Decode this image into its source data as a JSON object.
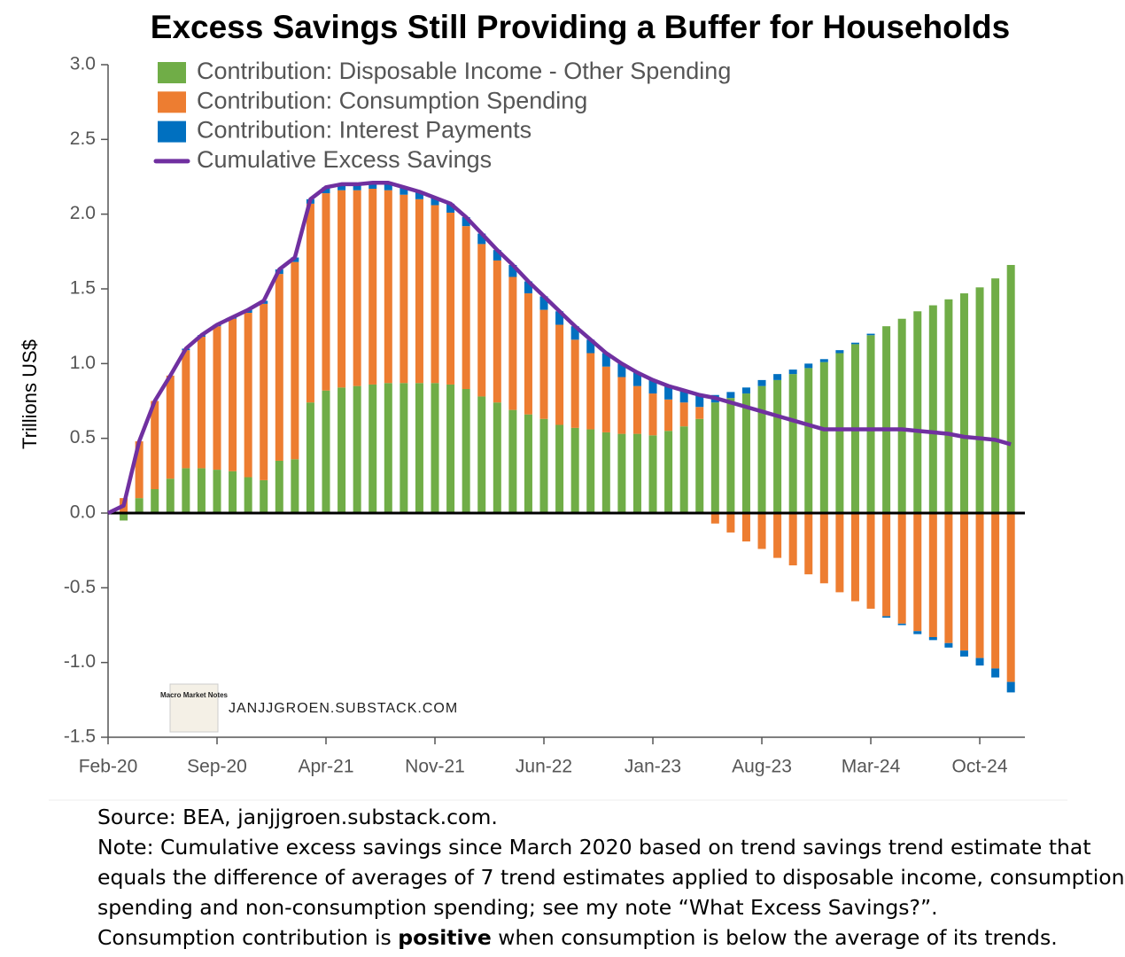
{
  "chart_data": {
    "type": "stacked_bar_line",
    "title": "Excess Savings Still Providing a Buffer for Households",
    "y_label": "Trillions US$",
    "watermark": "JANJJGROEN.SUBSTACK.COM",
    "logo_text": "Macro Market Notes",
    "legend": "upper left",
    "categories": [
      "Feb-20",
      null,
      null,
      null,
      null,
      null,
      null,
      "Sep-20",
      null,
      null,
      null,
      null,
      null,
      null,
      "Apr-21",
      null,
      null,
      null,
      null,
      null,
      null,
      "Nov-21",
      null,
      null,
      null,
      null,
      null,
      null,
      "Jun-22",
      null,
      null,
      null,
      null,
      null,
      null,
      "Jan-23",
      null,
      null,
      null,
      null,
      null,
      null,
      "Aug-23",
      null,
      null,
      null,
      null,
      null,
      null,
      "Mar-24",
      null,
      null,
      null,
      null,
      null,
      null,
      "Oct-24",
      null,
      null
    ],
    "series": [
      {
        "name": "Contribution: Disposable Income - Other Spending",
        "color": "#70ad47",
        "kind": "bar",
        "values": [
          null,
          -0.05,
          0.1,
          0.16,
          0.23,
          0.3,
          0.3,
          0.29,
          0.28,
          0.24,
          0.22,
          0.35,
          0.36,
          0.74,
          0.82,
          0.84,
          0.85,
          0.86,
          0.87,
          0.87,
          0.87,
          0.87,
          0.86,
          0.83,
          0.78,
          0.74,
          0.69,
          0.66,
          0.63,
          0.59,
          0.57,
          0.56,
          0.54,
          0.53,
          0.53,
          0.52,
          0.55,
          0.58,
          0.63,
          0.74,
          0.77,
          0.8,
          0.85,
          0.89,
          0.93,
          0.97,
          1.01,
          1.07,
          1.13,
          1.19,
          1.25,
          1.3,
          1.35,
          1.39,
          1.43,
          1.47,
          1.51,
          1.57,
          1.66
        ]
      },
      {
        "name": "Contribution: Consumption Spending",
        "color": "#ed7d31",
        "kind": "bar",
        "values": [
          null,
          0.1,
          0.38,
          0.59,
          0.69,
          0.79,
          0.88,
          0.96,
          1.02,
          1.1,
          1.18,
          1.25,
          1.32,
          1.33,
          1.32,
          1.32,
          1.31,
          1.31,
          1.29,
          1.26,
          1.23,
          1.19,
          1.15,
          1.09,
          1.02,
          0.95,
          0.89,
          0.81,
          0.73,
          0.67,
          0.59,
          0.51,
          0.44,
          0.38,
          0.32,
          0.28,
          0.21,
          0.16,
          0.08,
          -0.07,
          -0.13,
          -0.19,
          -0.24,
          -0.3,
          -0.35,
          -0.41,
          -0.47,
          -0.53,
          -0.59,
          -0.64,
          -0.69,
          -0.74,
          -0.79,
          -0.83,
          -0.87,
          -0.92,
          -0.97,
          -1.04,
          -1.13
        ]
      },
      {
        "name": "Contribution: Interest Payments",
        "color": "#0070c0",
        "kind": "bar",
        "values": [
          null,
          0,
          0,
          0,
          0,
          0.01,
          0.01,
          0.01,
          0.01,
          0.02,
          0.02,
          0.03,
          0.03,
          0.03,
          0.04,
          0.04,
          0.04,
          0.04,
          0.05,
          0.05,
          0.05,
          0.05,
          0.06,
          0.06,
          0.07,
          0.07,
          0.08,
          0.08,
          0.09,
          0.09,
          0.09,
          0.09,
          0.09,
          0.09,
          0.09,
          0.09,
          0.09,
          0.08,
          0.08,
          0.05,
          0.04,
          0.04,
          0.04,
          0.04,
          0.03,
          0.03,
          0.02,
          0.02,
          0.01,
          0.01,
          -0.01,
          -0.01,
          -0.02,
          -0.02,
          -0.03,
          -0.04,
          -0.05,
          -0.06,
          -0.07
        ]
      },
      {
        "name": "Cumulative Excess Savings",
        "color": "#7030a0",
        "kind": "line",
        "values": [
          0,
          0.05,
          0.48,
          0.75,
          0.92,
          1.1,
          1.19,
          1.26,
          1.31,
          1.36,
          1.42,
          1.63,
          1.71,
          2.1,
          2.18,
          2.2,
          2.2,
          2.21,
          2.21,
          2.18,
          2.15,
          2.11,
          2.07,
          1.98,
          1.87,
          1.76,
          1.66,
          1.55,
          1.45,
          1.35,
          1.25,
          1.16,
          1.07,
          1.0,
          0.94,
          0.89,
          0.85,
          0.82,
          0.79,
          0.77,
          0.74,
          0.71,
          0.68,
          0.65,
          0.62,
          0.59,
          0.56,
          0.56,
          0.56,
          0.56,
          0.56,
          0.56,
          0.55,
          0.54,
          0.53,
          0.51,
          0.5,
          0.49,
          0.46
        ]
      }
    ],
    "ylim": [
      -1.5,
      3.0
    ],
    "yticks": [
      {
        "value": -1.5,
        "label": "-1.5"
      },
      {
        "value": -1,
        "label": "-1.0"
      },
      -0.5,
      {
        "value": 0,
        "label": "0.0"
      },
      0.5,
      {
        "value": 1,
        "label": "1.0"
      },
      1.5,
      {
        "value": 2,
        "label": "2.0"
      },
      2.5,
      {
        "value": 3,
        "label": "3.0"
      }
    ],
    "grid": false
  },
  "footer": {
    "lines": [
      "Source: BEA, janjjgroen.substack.com.",
      "Note: Cumulative excess savings since March 2020 based on trend savings trend estimate that",
      "equals the difference of averages of 7 trend estimates applied to disposable income, consumption",
      "spending and non-consumption spending; see my note “What Excess Savings?”."
    ],
    "last_line": [
      "Consumption contribution is ",
      "positive",
      " when consumption is below the average of its trends."
    ]
  }
}
